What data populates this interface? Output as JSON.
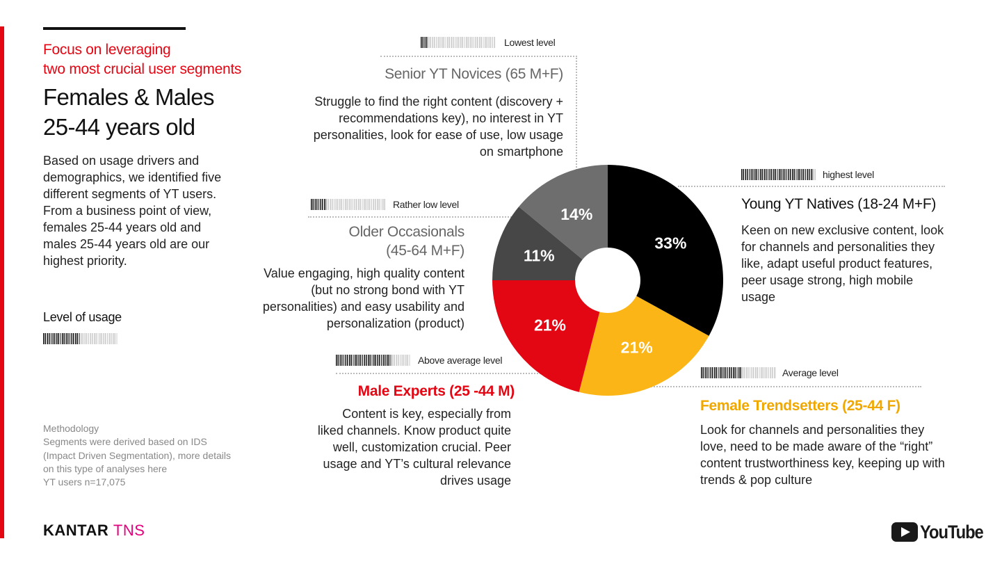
{
  "header": {
    "focus_lines": [
      "Focus on leveraging",
      "two most crucial user segments"
    ],
    "headline_lines": [
      "Females & Males",
      "25-44 years old"
    ]
  },
  "intro_text": "Based on usage drivers and demographics, we identified five different segments of YT users. From a business point of view, females 25-44 years old and males 25-44 years old are our highest priority.",
  "legend": {
    "title": "Level of usage",
    "level": 0.5
  },
  "methodology": {
    "title": "Methodology",
    "text": "Segments were derived based on IDS (Impact Driven Segmentation), more details on this type of analyses here",
    "sample": "YT users n=17,075"
  },
  "footer": {
    "kantar_brand": "KANTAR",
    "kantar_tns": "TNS",
    "youtube_brand": "YouTube"
  },
  "segments": [
    {
      "key": "senior",
      "level_label": "Lowest level",
      "level": 0.1,
      "title": "Senior YT Novices (65 M+F)",
      "description": "Struggle to find the right content (discovery + recommendations key), no interest in YT personalities, look for ease of use, low usage on smartphone"
    },
    {
      "key": "older",
      "level_label": "Rather low level",
      "level": 0.2,
      "title_lines": [
        "Older Occasionals",
        "(45-64 M+F)"
      ],
      "description": "Value engaging, high quality content (but no strong bond with YT personalities) and easy usability and personalization (product)"
    },
    {
      "key": "male",
      "level_label": "Above average level",
      "level": 0.75,
      "title": "Male Experts (25 -44 M)",
      "description": "Content is key, especially from liked channels. Know product quite well, customization crucial. Peer usage and YT’s cultural relevance drives usage"
    },
    {
      "key": "young",
      "level_label": "highest level",
      "level": 0.95,
      "title": "Young YT Natives (18-24 M+F)",
      "description": "Keen on new exclusive content, look for channels and personalities they like, adapt useful product features, peer usage strong, high mobile usage"
    },
    {
      "key": "female",
      "level_label": "Average level",
      "level": 0.55,
      "title": "Female Trendsetters (25-44 F)",
      "description": "Look for channels and personalities they love, need to be made aware of the “right” content trustworthiness key, keeping up with trends & pop culture"
    }
  ],
  "colors": {
    "accent_red": "#e30613",
    "yellow": "#fbb517",
    "black": "#000000",
    "dark_gray": "#474747",
    "mid_gray": "#6e6e6e",
    "kantar_pink": "#e6007e"
  },
  "chart_data": {
    "type": "pie",
    "donut": true,
    "categories": [
      "Young YT Natives",
      "Female Trendsetters",
      "Male Experts",
      "Older Occasionals",
      "Senior YT Novices"
    ],
    "values": [
      33,
      21,
      21,
      11,
      14
    ],
    "labels": [
      "33%",
      "21%",
      "21%",
      "11%",
      "14%"
    ],
    "slice_colors": [
      "#000000",
      "#fbb517",
      "#e30613",
      "#474747",
      "#6e6e6e"
    ]
  }
}
